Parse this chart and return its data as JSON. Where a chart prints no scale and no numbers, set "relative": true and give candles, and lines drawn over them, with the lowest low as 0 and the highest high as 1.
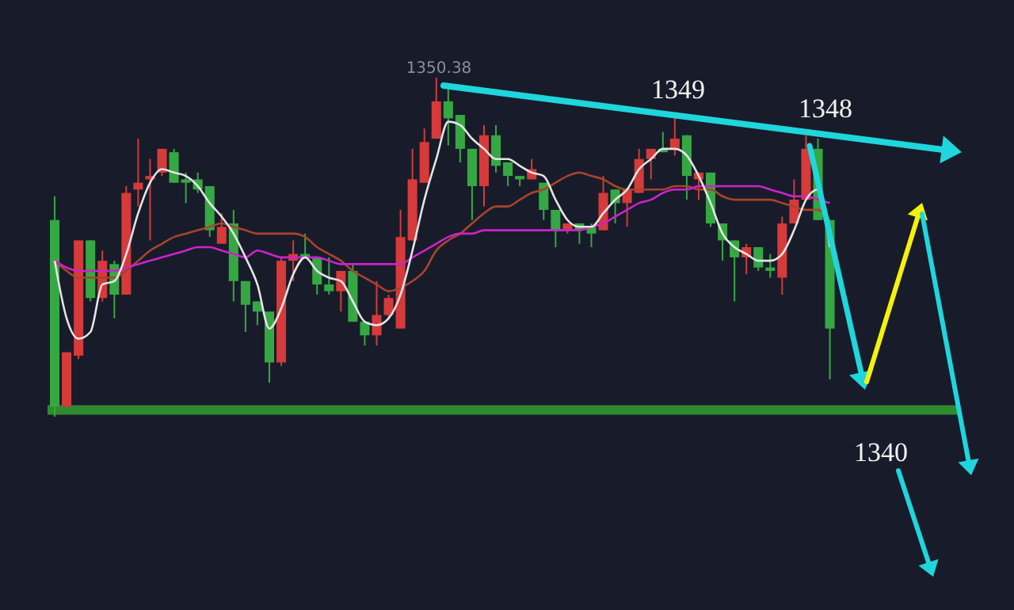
{
  "chart_data": {
    "type": "candlestick",
    "relative": true,
    "categories": [
      null,
      null,
      null,
      null,
      null,
      null,
      null,
      null,
      null,
      null,
      null,
      null,
      null,
      null,
      null,
      null,
      null,
      null,
      null,
      null,
      null,
      null,
      null,
      null,
      null,
      null,
      null,
      null,
      null,
      null,
      null,
      null,
      null,
      null,
      null,
      null,
      null,
      null,
      null,
      null,
      null,
      null,
      null,
      null,
      null,
      null,
      null,
      null,
      null,
      null,
      null,
      null,
      null,
      null,
      null,
      null,
      null,
      null,
      null,
      null,
      null,
      null,
      null,
      null,
      null,
      null
    ],
    "ohlc": [
      [
        0.58,
        0.65,
        0,
        0.03
      ],
      [
        0.03,
        0.19,
        0.03,
        0.19
      ],
      [
        0.18,
        0.52,
        0.17,
        0.52
      ],
      [
        0.52,
        0.52,
        0.34,
        0.35
      ],
      [
        0.35,
        0.49,
        0.34,
        0.46
      ],
      [
        0.45,
        0.46,
        0.29,
        0.36
      ],
      [
        0.36,
        0.68,
        0.36,
        0.66
      ],
      [
        0.67,
        0.82,
        0.62,
        0.69
      ],
      [
        0.7,
        0.76,
        0.52,
        0.71
      ],
      [
        0.72,
        0.79,
        0.71,
        0.79
      ],
      [
        0.78,
        0.79,
        0.69,
        0.69
      ],
      [
        0.7,
        0.72,
        0.63,
        0.69
      ],
      [
        0.7,
        0.72,
        0.66,
        0.67
      ],
      [
        0.68,
        0.68,
        0.53,
        0.55
      ],
      [
        0.51,
        0.6,
        0.51,
        0.56
      ],
      [
        0.57,
        0.61,
        0.34,
        0.4
      ],
      [
        0.4,
        0.4,
        0.25,
        0.33
      ],
      [
        0.34,
        0.34,
        0.27,
        0.31
      ],
      [
        0.31,
        0.31,
        0.1,
        0.16
      ],
      [
        0.16,
        0.47,
        0.15,
        0.46
      ],
      [
        0.46,
        0.52,
        0.4,
        0.48
      ],
      [
        0.48,
        0.54,
        0.47,
        0.47
      ],
      [
        0.47,
        0.47,
        0.36,
        0.39
      ],
      [
        0.39,
        0.47,
        0.36,
        0.37
      ],
      [
        0.37,
        0.43,
        0.31,
        0.43
      ],
      [
        0.43,
        0.45,
        0.28,
        0.28
      ],
      [
        0.28,
        0.28,
        0.21,
        0.24
      ],
      [
        0.24,
        0.4,
        0.21,
        0.3
      ],
      [
        0.3,
        0.36,
        0.29,
        0.35
      ],
      [
        0.26,
        0.61,
        0.26,
        0.53
      ],
      [
        0.52,
        0.79,
        0.52,
        0.7
      ],
      [
        0.69,
        0.85,
        0.69,
        0.81
      ],
      [
        0.82,
        1,
        0.82,
        0.93
      ],
      [
        0.93,
        0.97,
        0.8,
        0.88
      ],
      [
        0.89,
        0.89,
        0.75,
        0.79
      ],
      [
        0.79,
        0.79,
        0.58,
        0.68
      ],
      [
        0.68,
        0.86,
        0.62,
        0.83
      ],
      [
        0.83,
        0.86,
        0.72,
        0.74
      ],
      [
        0.75,
        0.75,
        0.68,
        0.71
      ],
      [
        0.71,
        0.71,
        0.68,
        0.7
      ],
      [
        0.7,
        0.76,
        0.7,
        0.73
      ],
      [
        0.69,
        0.69,
        0.58,
        0.61
      ],
      [
        0.61,
        0.61,
        0.5,
        0.55
      ],
      [
        0.55,
        0.57,
        0.54,
        0.57
      ],
      [
        0.57,
        0.57,
        0.51,
        0.55
      ],
      [
        0.56,
        0.57,
        0.5,
        0.54
      ],
      [
        0.55,
        0.71,
        0.55,
        0.66
      ],
      [
        0.67,
        0.67,
        0.57,
        0.63
      ],
      [
        0.63,
        0.67,
        0.56,
        0.67
      ],
      [
        0.66,
        0.79,
        0.66,
        0.76
      ],
      [
        0.76,
        0.79,
        0.7,
        0.79
      ],
      [
        0.79,
        0.84,
        0.78,
        0.78
      ],
      [
        0.79,
        0.89,
        0.77,
        0.82
      ],
      [
        0.83,
        0.83,
        0.64,
        0.71
      ],
      [
        0.7,
        0.72,
        0.64,
        0.72
      ],
      [
        0.72,
        0.72,
        0.56,
        0.57
      ],
      [
        0.57,
        0.57,
        0.46,
        0.52
      ],
      [
        0.52,
        0.52,
        0.34,
        0.47
      ],
      [
        0.47,
        0.51,
        0.42,
        0.5
      ],
      [
        0.5,
        0.5,
        0.43,
        0.44
      ],
      [
        0.44,
        0.48,
        0.41,
        0.43
      ],
      [
        0.41,
        0.59,
        0.36,
        0.57
      ],
      [
        0.57,
        0.7,
        0.57,
        0.64
      ],
      [
        0.64,
        0.83,
        0.64,
        0.79
      ],
      [
        0.79,
        0.82,
        0.58,
        0.58
      ],
      [
        0.58,
        0.58,
        0.11,
        0.26
      ]
    ],
    "colors": [
      "#35a844",
      "#d63a3a",
      "#d63a3a",
      "#35a844",
      "#d63a3a",
      "#35a844",
      "#d63a3a",
      "#d63a3a",
      "#d63a3a",
      "#d63a3a",
      "#35a844",
      "#35a844",
      "#35a844",
      "#35a844",
      "#d63a3a",
      "#35a844",
      "#35a844",
      "#35a844",
      "#35a844",
      "#d63a3a",
      "#d63a3a",
      "#35a844",
      "#35a844",
      "#35a844",
      "#d63a3a",
      "#35a844",
      "#35a844",
      "#d63a3a",
      "#d63a3a",
      "#d63a3a",
      "#d63a3a",
      "#d63a3a",
      "#d63a3a",
      "#35a844",
      "#35a844",
      "#35a844",
      "#d63a3a",
      "#35a844",
      "#35a844",
      "#35a844",
      "#d63a3a",
      "#35a844",
      "#35a844",
      "#d63a3a",
      "#35a844",
      "#35a844",
      "#d63a3a",
      "#35a844",
      "#d63a3a",
      "#d63a3a",
      "#d63a3a",
      "#35a844",
      "#d63a3a",
      "#35a844",
      "#d63a3a",
      "#35a844",
      "#35a844",
      "#35a844",
      "#d63a3a",
      "#35a844",
      "#35a844",
      "#d63a3a",
      "#d63a3a",
      "#d63a3a",
      "#35a844",
      "#35a844"
    ],
    "series": [
      {
        "type": "line",
        "color": "#a8442c",
        "values": [
          0.46,
          0.43,
          0.41,
          0.41,
          0.41,
          0.41,
          0.43,
          0.46,
          0.49,
          0.51,
          0.53,
          0.54,
          0.55,
          0.56,
          0.57,
          0.56,
          0.55,
          0.54,
          0.54,
          0.54,
          0.54,
          0.53,
          0.5,
          0.48,
          0.46,
          0.43,
          0.41,
          0.39,
          0.37,
          0.38,
          0.4,
          0.43,
          0.49,
          0.52,
          0.54,
          0.57,
          0.6,
          0.62,
          0.62,
          0.64,
          0.66,
          0.67,
          0.69,
          0.71,
          0.72,
          0.71,
          0.7,
          0.68,
          0.67,
          0.67,
          0.67,
          0.67,
          0.68,
          0.68,
          0.67,
          0.67,
          0.65,
          0.64,
          0.64,
          0.64,
          0.64,
          0.63,
          0.62,
          0.61,
          0.61,
          0.58
        ]
      },
      {
        "type": "line",
        "color": "#cc22cc",
        "values": [
          0.46,
          0.44,
          0.43,
          0.43,
          0.43,
          0.43,
          0.44,
          0.45,
          0.46,
          0.47,
          0.48,
          0.49,
          0.5,
          0.5,
          0.49,
          0.48,
          0.47,
          0.49,
          0.48,
          0.47,
          0.47,
          0.47,
          0.47,
          0.46,
          0.45,
          0.45,
          0.45,
          0.45,
          0.45,
          0.45,
          0.47,
          0.49,
          0.51,
          0.53,
          0.54,
          0.54,
          0.55,
          0.55,
          0.55,
          0.55,
          0.55,
          0.55,
          0.55,
          0.55,
          0.55,
          0.56,
          0.57,
          0.59,
          0.61,
          0.63,
          0.64,
          0.66,
          0.67,
          0.67,
          0.68,
          0.68,
          0.68,
          0.68,
          0.68,
          0.68,
          0.67,
          0.66,
          0.65,
          0.65,
          0.64,
          0.63
        ]
      },
      {
        "type": "line",
        "color": "#e4e4e4",
        "values": [
          0.46,
          0.29,
          0.23,
          0.25,
          0.39,
          0.4,
          0.48,
          0.6,
          0.69,
          0.73,
          0.72,
          0.71,
          0.68,
          0.63,
          0.59,
          0.54,
          0.47,
          0.39,
          0.26,
          0.32,
          0.42,
          0.47,
          0.43,
          0.41,
          0.4,
          0.34,
          0.28,
          0.27,
          0.29,
          0.36,
          0.49,
          0.64,
          0.76,
          0.87,
          0.86,
          0.82,
          0.79,
          0.76,
          0.76,
          0.74,
          0.72,
          0.71,
          0.64,
          0.58,
          0.56,
          0.56,
          0.6,
          0.64,
          0.67,
          0.73,
          0.76,
          0.79,
          0.79,
          0.77,
          0.71,
          0.63,
          0.54,
          0.5,
          0.48,
          0.46,
          0.46,
          0.48,
          0.55,
          0.64,
          0.67,
          0.5
        ]
      }
    ],
    "ref_lines": [
      {
        "axis": "y",
        "value": 0.02,
        "color": "#2f8a2f"
      }
    ],
    "annotations": [
      "1350.38",
      "1349",
      "1348",
      "1340"
    ]
  }
}
